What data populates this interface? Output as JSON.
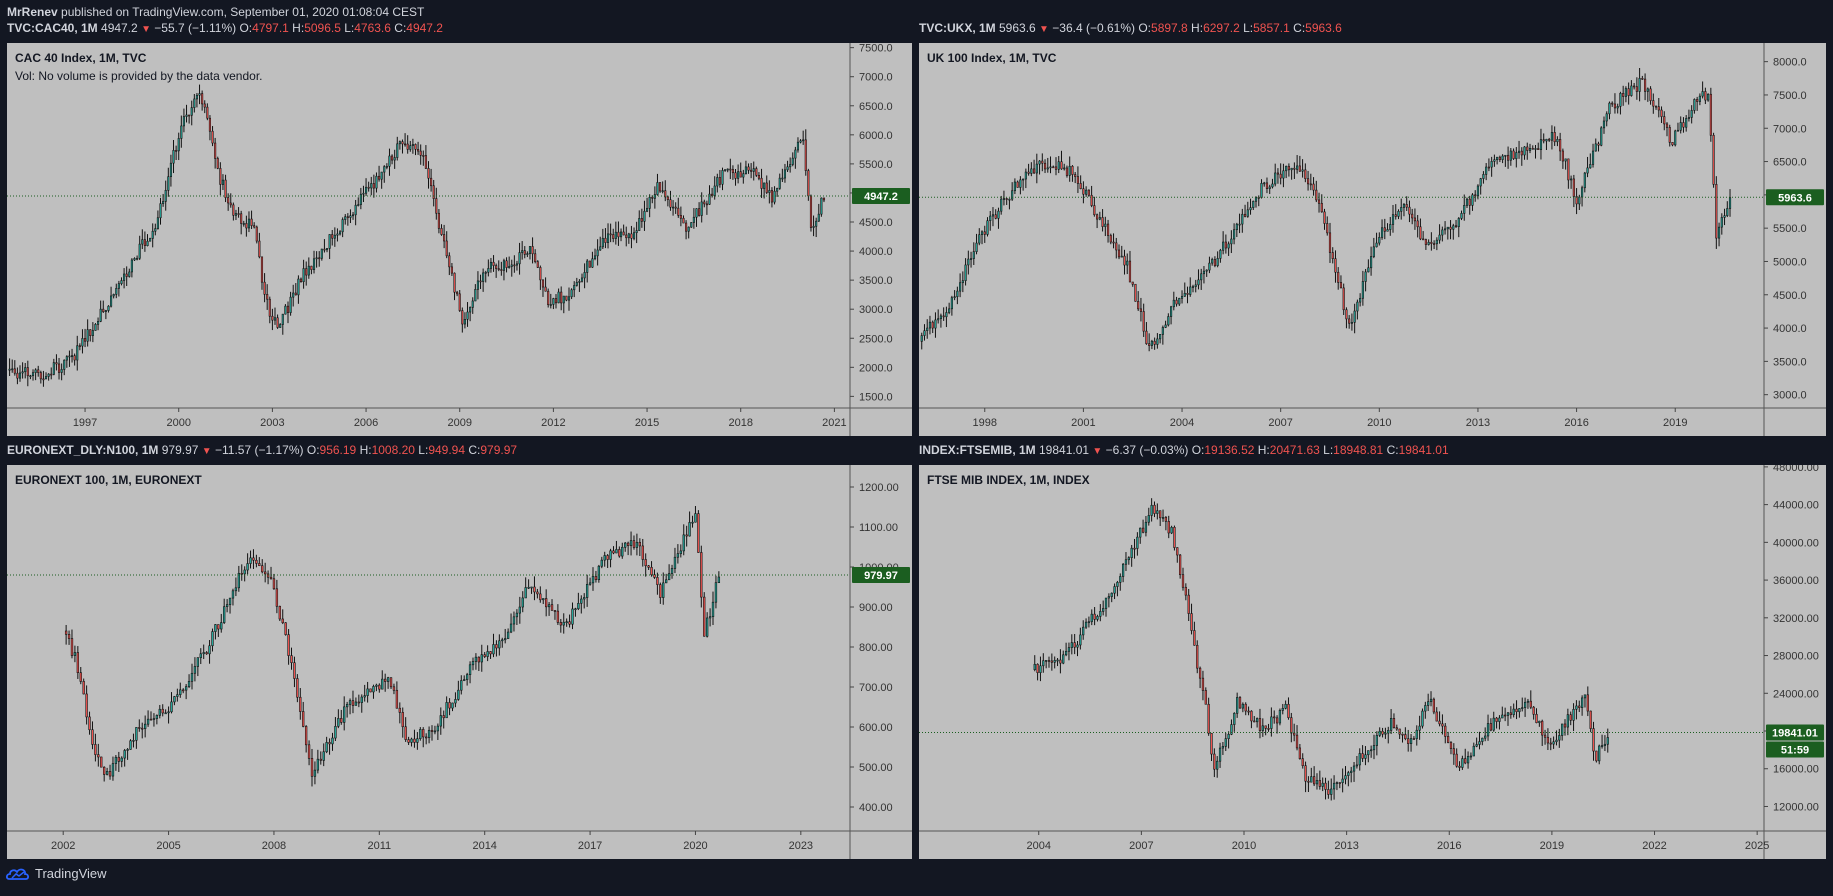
{
  "header": {
    "author": "MrRenev",
    "published_text": " published on TradingView.com, September 01, 2020 01:08:04 CEST"
  },
  "footer": {
    "brand": "TradingView",
    "logo_icon": "tradingview-cloud-icon"
  },
  "colors": {
    "up": "#26a69a",
    "down": "#ef5350",
    "background": "#bfbfbf",
    "last_price_tag": "#1b5e20"
  },
  "chart_data": [
    {
      "type": "candlestick",
      "symbol": "TVC:CAC40, 1M",
      "last": "4947.2",
      "change": "−55.7 (−1.11%)",
      "open": "4797.1",
      "high": "5096.5",
      "low": "4763.6",
      "close": "4947.2",
      "title": "CAC 40 Index, 1M, TVC",
      "subtitle": "Vol: No volume is provided by the data vendor.",
      "y_ticks": [
        "7500.0",
        "7000.0",
        "6500.0",
        "6000.0",
        "5500.0",
        "5000.0",
        "4500.0",
        "4000.0",
        "3500.0",
        "3000.0",
        "2500.0",
        "2000.0",
        "1500.0"
      ],
      "x_ticks": [
        "1997",
        "2000",
        "2003",
        "2006",
        "2009",
        "2012",
        "2015",
        "2018",
        "2021"
      ],
      "ylim": [
        1300,
        7580
      ],
      "xlim": [
        1994.5,
        2021.5
      ],
      "last_price_label": "4947.2",
      "series": [
        {
          "x": 1994.5,
          "y": 1950
        },
        {
          "x": 1995.5,
          "y": 1850
        },
        {
          "x": 1996.5,
          "y": 2100
        },
        {
          "x": 1997.5,
          "y": 2900
        },
        {
          "x": 1998.5,
          "y": 3800
        },
        {
          "x": 1999.3,
          "y": 4500
        },
        {
          "x": 2000.1,
          "y": 6200
        },
        {
          "x": 2000.7,
          "y": 6700
        },
        {
          "x": 2001.3,
          "y": 5300
        },
        {
          "x": 2001.8,
          "y": 4600
        },
        {
          "x": 2002.4,
          "y": 4400
        },
        {
          "x": 2002.8,
          "y": 3100
        },
        {
          "x": 2003.2,
          "y": 2700
        },
        {
          "x": 2004.0,
          "y": 3600
        },
        {
          "x": 2005.0,
          "y": 4300
        },
        {
          "x": 2006.0,
          "y": 5000
        },
        {
          "x": 2007.2,
          "y": 5900
        },
        {
          "x": 2007.9,
          "y": 5500
        },
        {
          "x": 2008.4,
          "y": 4300
        },
        {
          "x": 2009.1,
          "y": 2800
        },
        {
          "x": 2009.9,
          "y": 3800
        },
        {
          "x": 2010.6,
          "y": 3700
        },
        {
          "x": 2011.3,
          "y": 4100
        },
        {
          "x": 2011.8,
          "y": 3100
        },
        {
          "x": 2012.6,
          "y": 3300
        },
        {
          "x": 2013.6,
          "y": 4200
        },
        {
          "x": 2014.6,
          "y": 4300
        },
        {
          "x": 2015.3,
          "y": 5100
        },
        {
          "x": 2016.3,
          "y": 4400
        },
        {
          "x": 2017.4,
          "y": 5300
        },
        {
          "x": 2018.4,
          "y": 5400
        },
        {
          "x": 2019.0,
          "y": 4900
        },
        {
          "x": 2020.0,
          "y": 6000
        },
        {
          "x": 2020.25,
          "y": 4400
        },
        {
          "x": 2020.67,
          "y": 4947
        }
      ]
    },
    {
      "type": "candlestick",
      "symbol": "TVC:UKX, 1M",
      "last": "5963.6",
      "change": "−36.4 (−0.61%)",
      "open": "5897.8",
      "high": "6297.2",
      "low": "5857.1",
      "close": "5963.6",
      "title": "UK 100 Index, 1M, TVC",
      "subtitle": "",
      "y_ticks": [
        "8000.0",
        "7500.0",
        "7000.0",
        "6500.0",
        "6000.0",
        "5500.0",
        "5000.0",
        "4500.0",
        "4000.0",
        "3500.0",
        "3000.0"
      ],
      "x_ticks": [
        "1998",
        "2001",
        "2004",
        "2007",
        "2010",
        "2013",
        "2016",
        "2019"
      ],
      "ylim": [
        2800,
        8280
      ],
      "xlim": [
        1996.0,
        2021.7
      ],
      "last_price_label": "5963.6",
      "series": [
        {
          "x": 1996.0,
          "y": 3800
        },
        {
          "x": 1997.0,
          "y": 4400
        },
        {
          "x": 1998.0,
          "y": 5500
        },
        {
          "x": 1999.0,
          "y": 6200
        },
        {
          "x": 1999.9,
          "y": 6500
        },
        {
          "x": 2000.8,
          "y": 6300
        },
        {
          "x": 2001.5,
          "y": 5600
        },
        {
          "x": 2002.3,
          "y": 5000
        },
        {
          "x": 2003.0,
          "y": 3700
        },
        {
          "x": 2003.8,
          "y": 4400
        },
        {
          "x": 2005.0,
          "y": 5000
        },
        {
          "x": 2006.2,
          "y": 6000
        },
        {
          "x": 2007.5,
          "y": 6500
        },
        {
          "x": 2008.2,
          "y": 5800
        },
        {
          "x": 2009.1,
          "y": 4000
        },
        {
          "x": 2010.0,
          "y": 5400
        },
        {
          "x": 2010.8,
          "y": 5800
        },
        {
          "x": 2011.5,
          "y": 5200
        },
        {
          "x": 2012.5,
          "y": 5700
        },
        {
          "x": 2013.4,
          "y": 6500
        },
        {
          "x": 2014.5,
          "y": 6700
        },
        {
          "x": 2015.4,
          "y": 6900
        },
        {
          "x": 2016.0,
          "y": 5900
        },
        {
          "x": 2017.0,
          "y": 7300
        },
        {
          "x": 2018.0,
          "y": 7700
        },
        {
          "x": 2018.9,
          "y": 6800
        },
        {
          "x": 2019.6,
          "y": 7400
        },
        {
          "x": 2020.0,
          "y": 7500
        },
        {
          "x": 2020.25,
          "y": 5400
        },
        {
          "x": 2020.67,
          "y": 5964
        }
      ]
    },
    {
      "type": "candlestick",
      "symbol": "EURONEXT_DLY:N100, 1M",
      "last": "979.97",
      "change": "−11.57 (−1.17%)",
      "open": "956.19",
      "high": "1008.20",
      "low": "949.94",
      "close": "979.97",
      "title": "EURONEXT 100, 1M, EURONEXT",
      "subtitle": "",
      "y_ticks": [
        "1200.00",
        "1100.00",
        "1000.00",
        "900.00",
        "800.00",
        "700.00",
        "600.00",
        "500.00",
        "400.00"
      ],
      "x_ticks": [
        "2002",
        "2005",
        "2008",
        "2011",
        "2014",
        "2017",
        "2020",
        "2023"
      ],
      "ylim": [
        340,
        1255
      ],
      "xlim": [
        2000.4,
        2024.4
      ],
      "last_price_label": "979.97",
      "series": [
        {
          "x": 2002.0,
          "y": 840
        },
        {
          "x": 2002.4,
          "y": 760
        },
        {
          "x": 2002.8,
          "y": 560
        },
        {
          "x": 2003.2,
          "y": 470
        },
        {
          "x": 2004.0,
          "y": 580
        },
        {
          "x": 2005.0,
          "y": 650
        },
        {
          "x": 2006.0,
          "y": 780
        },
        {
          "x": 2007.3,
          "y": 1030
        },
        {
          "x": 2007.9,
          "y": 980
        },
        {
          "x": 2008.5,
          "y": 760
        },
        {
          "x": 2009.1,
          "y": 480
        },
        {
          "x": 2010.0,
          "y": 640
        },
        {
          "x": 2011.3,
          "y": 720
        },
        {
          "x": 2011.8,
          "y": 560
        },
        {
          "x": 2012.6,
          "y": 600
        },
        {
          "x": 2013.6,
          "y": 750
        },
        {
          "x": 2014.6,
          "y": 830
        },
        {
          "x": 2015.3,
          "y": 960
        },
        {
          "x": 2016.3,
          "y": 850
        },
        {
          "x": 2017.4,
          "y": 1020
        },
        {
          "x": 2018.3,
          "y": 1060
        },
        {
          "x": 2019.0,
          "y": 930
        },
        {
          "x": 2020.0,
          "y": 1140
        },
        {
          "x": 2020.25,
          "y": 830
        },
        {
          "x": 2020.67,
          "y": 980
        }
      ]
    },
    {
      "type": "candlestick",
      "symbol": "INDEX:FTSEMIB, 1M",
      "last": "19841.01",
      "change": "−6.37 (−0.03%)",
      "open": "19136.52",
      "high": "20471.63",
      "low": "18948.81",
      "close": "19841.01",
      "title": "FTSE MIB INDEX, 1M, INDEX",
      "subtitle": "",
      "y_ticks": [
        "48000.00",
        "44000.00",
        "40000.00",
        "36000.00",
        "32000.00",
        "28000.00",
        "24000.00",
        "20000.00",
        "16000.00",
        "12000.00"
      ],
      "x_ticks": [
        "2004",
        "2007",
        "2010",
        "2013",
        "2016",
        "2019",
        "2022",
        "2025"
      ],
      "ylim": [
        9400,
        48200
      ],
      "xlim": [
        2000.5,
        2025.2
      ],
      "last_price_label": "19841.01",
      "countdown_label": "51:59",
      "series": [
        {
          "x": 2003.8,
          "y": 26500
        },
        {
          "x": 2004.8,
          "y": 28000
        },
        {
          "x": 2005.6,
          "y": 32000
        },
        {
          "x": 2006.3,
          "y": 36000
        },
        {
          "x": 2007.3,
          "y": 43500
        },
        {
          "x": 2007.9,
          "y": 41000
        },
        {
          "x": 2008.4,
          "y": 32000
        },
        {
          "x": 2008.9,
          "y": 22000
        },
        {
          "x": 2009.1,
          "y": 15500
        },
        {
          "x": 2009.8,
          "y": 23000
        },
        {
          "x": 2010.6,
          "y": 20000
        },
        {
          "x": 2011.2,
          "y": 22500
        },
        {
          "x": 2011.8,
          "y": 15000
        },
        {
          "x": 2012.5,
          "y": 13500
        },
        {
          "x": 2013.4,
          "y": 17000
        },
        {
          "x": 2014.3,
          "y": 21000
        },
        {
          "x": 2014.9,
          "y": 19000
        },
        {
          "x": 2015.4,
          "y": 23500
        },
        {
          "x": 2016.3,
          "y": 16000
        },
        {
          "x": 2017.3,
          "y": 21000
        },
        {
          "x": 2018.3,
          "y": 23500
        },
        {
          "x": 2018.9,
          "y": 18500
        },
        {
          "x": 2020.0,
          "y": 24000
        },
        {
          "x": 2020.25,
          "y": 17000
        },
        {
          "x": 2020.67,
          "y": 19841
        }
      ]
    }
  ]
}
